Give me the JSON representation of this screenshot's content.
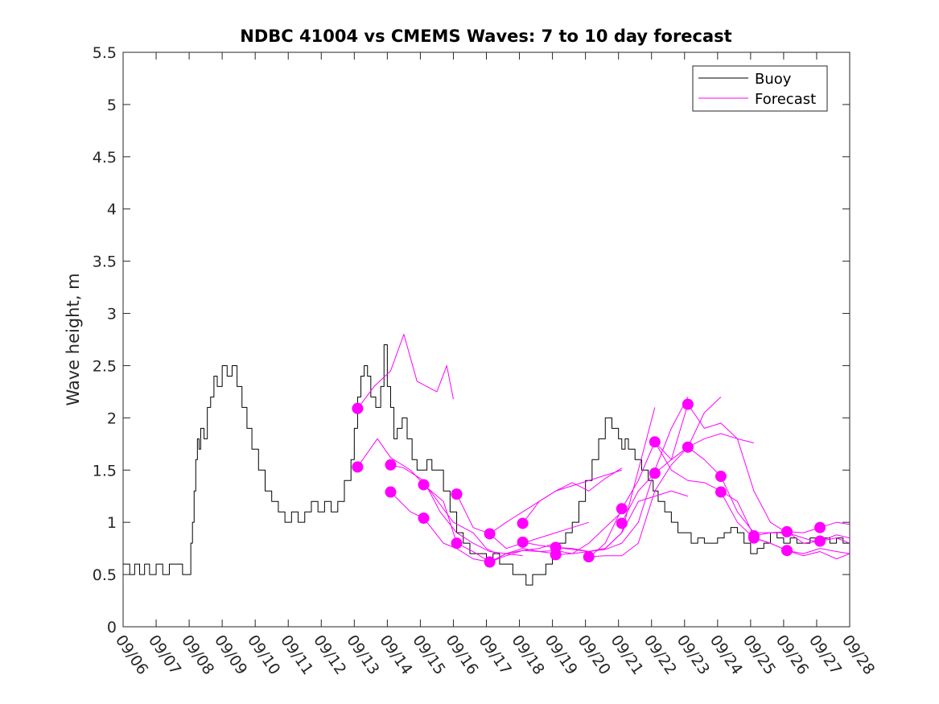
{
  "chart_data": {
    "type": "line",
    "title": "NDBC 41004 vs CMEMS Waves: 7 to 10 day forecast",
    "xlabel": "",
    "ylabel": "Wave height, m",
    "xlim": [
      0,
      22
    ],
    "ylim": [
      0,
      5.5
    ],
    "x_unit": "days since 09/06 00:00",
    "x_tick_labels": [
      "09/06",
      "09/07",
      "09/08",
      "09/09",
      "09/10",
      "09/11",
      "09/12",
      "09/13",
      "09/14",
      "09/15",
      "09/16",
      "09/17",
      "09/18",
      "09/19",
      "09/20",
      "09/21",
      "09/22",
      "09/23",
      "09/24",
      "09/25",
      "09/26",
      "09/27",
      "09/28"
    ],
    "y_ticks": [
      0,
      0.5,
      1,
      1.5,
      2,
      2.5,
      3,
      3.5,
      4,
      4.5,
      5,
      5.5
    ],
    "y_tick_labels": [
      "0",
      "0.5",
      "1",
      "1.5",
      "2",
      "2.5",
      "3",
      "3.5",
      "4",
      "4.5",
      "5",
      "5.5"
    ],
    "legend": {
      "position": "top-right",
      "entries": [
        {
          "name": "Buoy",
          "color": "#000000"
        },
        {
          "name": "Forecast",
          "color": "#ff00ff"
        }
      ]
    },
    "colors": {
      "buoy": "#000000",
      "forecast": "#ff00ff"
    },
    "series": [
      {
        "name": "Buoy",
        "color": "#000000",
        "x": [
          0,
          0.2,
          0.35,
          0.5,
          0.65,
          0.8,
          1.0,
          1.2,
          1.4,
          1.6,
          1.8,
          2.0,
          2.05,
          2.1,
          2.15,
          2.2,
          2.25,
          2.3,
          2.35,
          2.45,
          2.55,
          2.65,
          2.75,
          2.85,
          3.0,
          3.15,
          3.3,
          3.45,
          3.6,
          3.75,
          3.9,
          4.1,
          4.3,
          4.5,
          4.7,
          4.9,
          5.1,
          5.3,
          5.5,
          5.7,
          5.9,
          6.1,
          6.3,
          6.5,
          6.7,
          6.9,
          7.0,
          7.1,
          7.2,
          7.3,
          7.4,
          7.5,
          7.65,
          7.8,
          7.9,
          8.0,
          8.1,
          8.2,
          8.3,
          8.45,
          8.6,
          8.75,
          8.9,
          9.05,
          9.2,
          9.35,
          9.5,
          9.7,
          9.9,
          10.1,
          10.3,
          10.5,
          10.7,
          10.85,
          11.0,
          11.2,
          11.4,
          11.6,
          11.8,
          12.0,
          12.2,
          12.4,
          12.6,
          12.8,
          12.9,
          13.0,
          13.1,
          13.2,
          13.4,
          13.6,
          13.8,
          14.0,
          14.2,
          14.4,
          14.6,
          14.8,
          15.0,
          15.1,
          15.2,
          15.3,
          15.5,
          15.7,
          15.9,
          16.05,
          16.2,
          16.4,
          16.6,
          16.8,
          17.0,
          17.2,
          17.4,
          17.6,
          17.8,
          18.0,
          18.2,
          18.4,
          18.6,
          18.8,
          19.0,
          19.2,
          19.4,
          19.6,
          19.8,
          20.0,
          20.2,
          20.4,
          20.6,
          20.8,
          21.0,
          21.2,
          21.4,
          21.6,
          21.8,
          22.0
        ],
        "values": [
          0.6,
          0.5,
          0.6,
          0.5,
          0.6,
          0.5,
          0.6,
          0.5,
          0.6,
          0.6,
          0.5,
          0.5,
          0.8,
          1.0,
          1.3,
          1.6,
          1.8,
          1.7,
          1.9,
          1.8,
          2.1,
          2.2,
          2.4,
          2.3,
          2.5,
          2.4,
          2.5,
          2.3,
          2.1,
          1.9,
          1.7,
          1.5,
          1.3,
          1.2,
          1.1,
          1.0,
          1.1,
          1.0,
          1.1,
          1.2,
          1.1,
          1.2,
          1.1,
          1.2,
          1.4,
          1.6,
          1.9,
          2.2,
          2.4,
          2.5,
          2.4,
          2.2,
          2.1,
          2.3,
          2.7,
          2.3,
          2.1,
          1.8,
          1.9,
          2.0,
          1.8,
          1.6,
          1.5,
          1.5,
          1.6,
          1.5,
          1.5,
          1.3,
          1.1,
          0.9,
          0.8,
          0.7,
          0.7,
          0.7,
          0.6,
          0.7,
          0.6,
          0.6,
          0.5,
          0.5,
          0.4,
          0.5,
          0.5,
          0.6,
          0.6,
          0.7,
          0.7,
          0.8,
          0.9,
          1.0,
          1.2,
          1.4,
          1.6,
          1.8,
          2.0,
          1.9,
          1.8,
          1.7,
          1.8,
          1.7,
          1.6,
          1.5,
          1.4,
          1.3,
          1.2,
          1.1,
          1.0,
          0.9,
          0.9,
          0.8,
          0.85,
          0.8,
          0.8,
          0.85,
          0.9,
          0.95,
          0.9,
          0.8,
          0.7,
          0.75,
          0.8,
          0.9,
          0.85,
          0.8,
          0.85,
          0.8,
          0.8,
          0.85,
          0.8,
          0.85,
          0.8,
          0.85,
          0.8,
          0.8
        ],
        "step": true
      },
      {
        "name": "Forecast",
        "color": "#ff00ff",
        "x": [
          7.1,
          7.6,
          8.1,
          8.5,
          8.9,
          9.2,
          9.5,
          9.8,
          10.0
        ],
        "values": [
          2.09,
          2.3,
          2.45,
          2.8,
          2.35,
          2.3,
          2.25,
          2.5,
          2.18
        ]
      },
      {
        "name": "Forecast",
        "color": "#ff00ff",
        "x": [
          7.1,
          7.7,
          8.1,
          8.7,
          9.3,
          10.0,
          10.6,
          11.0,
          11.3
        ],
        "values": [
          1.53,
          1.8,
          1.62,
          1.5,
          1.3,
          1.0,
          0.9,
          0.75,
          0.7
        ]
      },
      {
        "name": "Forecast",
        "color": "#ff00ff",
        "x": [
          8.1,
          8.5,
          9.1,
          9.6,
          10.1,
          10.6,
          11.1,
          11.6,
          12.1
        ],
        "values": [
          1.55,
          1.52,
          1.4,
          1.1,
          0.9,
          0.8,
          0.72,
          0.7,
          0.68
        ]
      },
      {
        "name": "Forecast",
        "color": "#ff00ff",
        "x": [
          8.1,
          8.7,
          9.1,
          9.7,
          10.1,
          10.6,
          11.1,
          11.6,
          12.1,
          12.6,
          13.1
        ],
        "values": [
          1.29,
          1.1,
          1.04,
          0.8,
          0.75,
          0.65,
          0.62,
          0.7,
          0.75,
          0.72,
          0.7
        ]
      },
      {
        "name": "Forecast",
        "color": "#ff00ff",
        "x": [
          9.1,
          9.7,
          10.1,
          10.6,
          11.1,
          11.6,
          12.1,
          12.6,
          13.1
        ],
        "values": [
          1.36,
          1.2,
          0.8,
          0.72,
          0.62,
          0.68,
          0.73,
          0.75,
          0.8
        ]
      },
      {
        "name": "Forecast",
        "color": "#ff00ff",
        "x": [
          10.1,
          10.6,
          11.1,
          11.6,
          12.1,
          12.6,
          13.1,
          13.6,
          14.1
        ],
        "values": [
          1.27,
          0.95,
          0.89,
          0.75,
          0.8,
          0.85,
          0.9,
          0.95,
          1.0
        ]
      },
      {
        "name": "Forecast",
        "color": "#ff00ff",
        "x": [
          11.1,
          11.6,
          12.1,
          12.6,
          13.1,
          13.6,
          14.1,
          14.6,
          15.1
        ],
        "values": [
          0.62,
          0.7,
          0.73,
          0.72,
          0.73,
          0.7,
          0.8,
          0.95,
          1.1
        ]
      },
      {
        "name": "Forecast",
        "color": "#ff00ff",
        "x": [
          11.1,
          11.6,
          12.1,
          12.6,
          13.1,
          13.6,
          14.1,
          14.6,
          15.1
        ],
        "values": [
          0.89,
          1.0,
          1.1,
          1.2,
          1.3,
          1.35,
          1.4,
          1.45,
          1.5
        ]
      },
      {
        "name": "Forecast",
        "color": "#ff00ff",
        "x": [
          12.1,
          12.6,
          13.1,
          13.6,
          14.1,
          14.6,
          15.1,
          15.6,
          16.1
        ],
        "values": [
          0.81,
          0.78,
          0.76,
          0.74,
          0.72,
          0.75,
          0.9,
          1.5,
          2.1
        ]
      },
      {
        "name": "Forecast",
        "color": "#ff00ff",
        "x": [
          12.1,
          12.6,
          13.1,
          13.6,
          14.1,
          14.6,
          15.1
        ],
        "values": [
          0.99,
          1.2,
          1.3,
          1.38,
          1.3,
          1.42,
          1.52
        ]
      },
      {
        "name": "Forecast",
        "color": "#ff00ff",
        "x": [
          13.1,
          13.6,
          14.1,
          14.6,
          15.1,
          15.6,
          16.1,
          16.6,
          17.1
        ],
        "values": [
          0.76,
          0.75,
          0.72,
          0.74,
          0.8,
          1.0,
          1.5,
          1.9,
          2.2
        ]
      },
      {
        "name": "Forecast",
        "color": "#ff00ff",
        "x": [
          13.1,
          13.6,
          14.1,
          14.6,
          15.1,
          15.6,
          16.1,
          16.6,
          17.1
        ],
        "values": [
          0.69,
          0.7,
          0.72,
          0.75,
          0.9,
          1.2,
          1.25,
          1.3,
          1.25
        ]
      },
      {
        "name": "Forecast",
        "color": "#ff00ff",
        "x": [
          14.1,
          14.6,
          15.1,
          15.6,
          16.1,
          16.6,
          17.1,
          17.6,
          18.1
        ],
        "values": [
          0.67,
          0.68,
          0.68,
          0.8,
          1.3,
          1.55,
          1.72,
          2.05,
          2.2
        ]
      },
      {
        "name": "Forecast",
        "color": "#ff00ff",
        "x": [
          14.1,
          14.6,
          15.1,
          15.6,
          16.1,
          16.6,
          17.1,
          17.6,
          18.1,
          18.6,
          19.1
        ],
        "values": [
          0.66,
          0.8,
          1.13,
          1.4,
          1.77,
          1.6,
          1.72,
          1.8,
          1.85,
          1.8,
          1.76
        ]
      },
      {
        "name": "Forecast",
        "color": "#ff00ff",
        "x": [
          15.1,
          15.6,
          16.1,
          16.6,
          17.1,
          17.6,
          18.1,
          18.6,
          19.1,
          19.6,
          20.1
        ],
        "values": [
          1.0,
          1.3,
          1.47,
          1.6,
          2.13,
          1.9,
          1.95,
          1.8,
          1.3,
          1.0,
          0.9
        ]
      },
      {
        "name": "Forecast",
        "color": "#ff00ff",
        "x": [
          16.1,
          16.6,
          17.1,
          17.6,
          18.1,
          18.6,
          19.1,
          19.6,
          20.1,
          20.6,
          21.1
        ],
        "values": [
          1.77,
          1.5,
          1.4,
          1.38,
          1.3,
          1.2,
          0.87,
          0.9,
          0.9,
          0.85,
          0.8
        ]
      },
      {
        "name": "Forecast",
        "color": "#ff00ff",
        "x": [
          17.1,
          17.6,
          18.1,
          18.6,
          19.1,
          19.6,
          20.1,
          20.6,
          21.1,
          21.6,
          22.0
        ],
        "values": [
          1.72,
          1.6,
          1.44,
          1.1,
          0.9,
          0.9,
          0.91,
          0.8,
          0.82,
          0.85,
          0.8
        ]
      },
      {
        "name": "Forecast",
        "color": "#ff00ff",
        "x": [
          18.1,
          18.6,
          19.1,
          19.6,
          20.1,
          20.6,
          21.1,
          21.6,
          22.0
        ],
        "values": [
          1.29,
          1.0,
          0.85,
          0.8,
          0.73,
          0.7,
          0.75,
          0.72,
          0.7
        ]
      },
      {
        "name": "Forecast",
        "color": "#ff00ff",
        "x": [
          19.1,
          19.6,
          20.1,
          20.6,
          21.1,
          21.6,
          22.0
        ],
        "values": [
          0.85,
          0.8,
          0.73,
          0.68,
          0.72,
          0.65,
          0.7
        ]
      },
      {
        "name": "Forecast",
        "color": "#ff00ff",
        "x": [
          20.1,
          20.6,
          21.1,
          21.6,
          22.0
        ],
        "values": [
          0.91,
          0.9,
          0.95,
          1.0,
          0.98
        ]
      },
      {
        "name": "Forecast",
        "color": "#ff00ff",
        "x": [
          21.1,
          21.6,
          22.0
        ],
        "values": [
          0.82,
          0.88,
          0.85
        ]
      }
    ],
    "forecast_start_markers": {
      "x": [
        7.1,
        7.1,
        8.1,
        8.1,
        9.1,
        9.1,
        10.1,
        10.1,
        11.1,
        11.1,
        12.1,
        12.1,
        13.1,
        13.1,
        14.1,
        15.1,
        15.1,
        16.1,
        16.1,
        17.1,
        17.1,
        18.1,
        18.1,
        19.1,
        19.1,
        20.1,
        20.1,
        21.1,
        21.1
      ],
      "values": [
        2.09,
        1.53,
        1.55,
        1.29,
        1.36,
        1.04,
        1.27,
        0.8,
        0.89,
        0.62,
        0.99,
        0.81,
        0.76,
        0.69,
        0.67,
        1.13,
        0.99,
        1.77,
        1.47,
        2.13,
        1.72,
        1.44,
        1.29,
        0.87,
        0.85,
        0.91,
        0.73,
        0.95,
        0.82
      ]
    }
  }
}
